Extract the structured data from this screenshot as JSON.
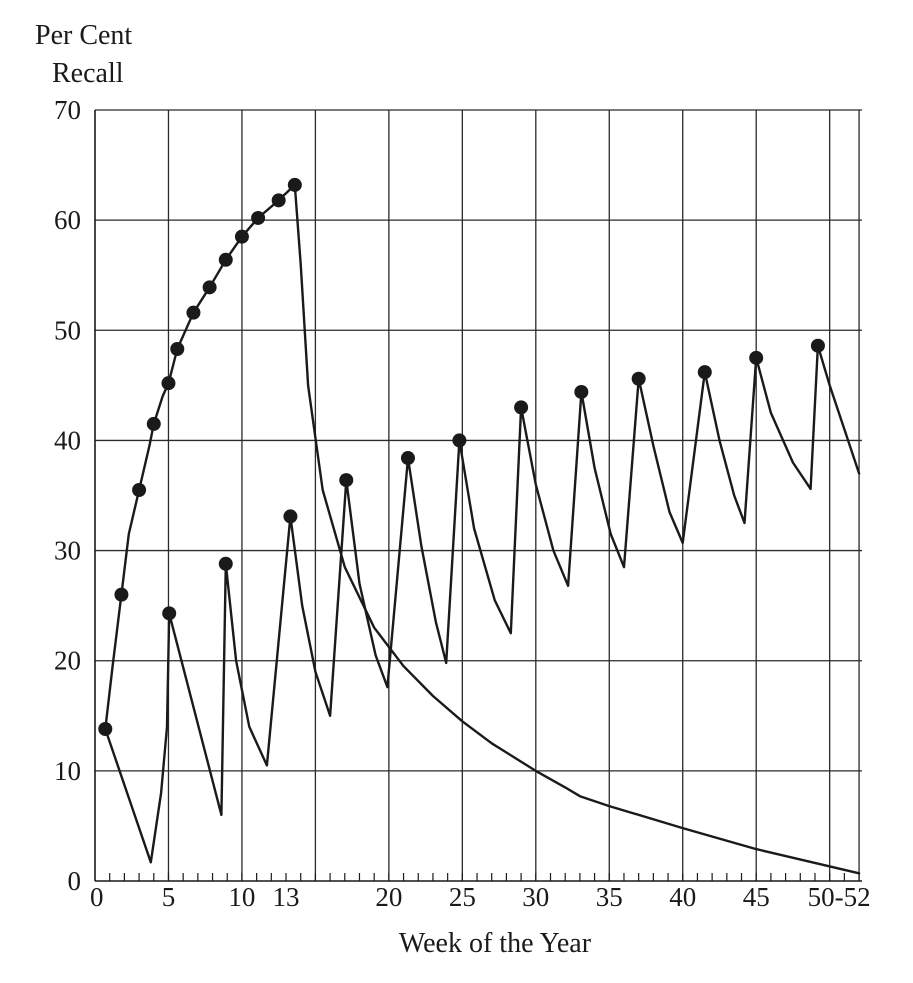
{
  "chart_data": {
    "type": "line",
    "title": "",
    "ylabel_lines": [
      "Per Cent",
      "Recall"
    ],
    "xlabel": "Week of the Year",
    "ylim": [
      0,
      70
    ],
    "yticks": [
      0,
      10,
      20,
      30,
      40,
      50,
      60,
      70
    ],
    "xtick_labels": [
      {
        "x": 0,
        "label": "0"
      },
      {
        "x": 5,
        "label": "5"
      },
      {
        "x": 10,
        "label": "10"
      },
      {
        "x": 13,
        "label": "13"
      },
      {
        "x": 20,
        "label": "20"
      },
      {
        "x": 25,
        "label": "25"
      },
      {
        "x": 30,
        "label": "30"
      },
      {
        "x": 35,
        "label": "35"
      },
      {
        "x": 40,
        "label": "40"
      },
      {
        "x": 45,
        "label": "45"
      },
      {
        "x": 50,
        "label": "50-52"
      }
    ],
    "vertical_gridlines": [
      5,
      10,
      15,
      20,
      25,
      30,
      35,
      40,
      45,
      50,
      52
    ],
    "grid": true,
    "series": [
      {
        "curve": [
          [
            0.7,
            13.8
          ],
          [
            1.2,
            19.5
          ],
          [
            1.8,
            26.0
          ],
          [
            2.3,
            31.5
          ],
          [
            3.0,
            35.5
          ],
          [
            3.7,
            39.5
          ],
          [
            4.0,
            41.5
          ],
          [
            4.6,
            44.0
          ],
          [
            5.0,
            45.2
          ],
          [
            5.6,
            48.3
          ],
          [
            6.7,
            51.6
          ],
          [
            7.8,
            53.9
          ],
          [
            8.9,
            56.4
          ],
          [
            10.0,
            58.5
          ],
          [
            11.1,
            60.2
          ],
          [
            12.5,
            61.8
          ],
          [
            13.6,
            63.2
          ],
          [
            14.0,
            56.0
          ],
          [
            14.5,
            45.0
          ],
          [
            15.5,
            35.5
          ],
          [
            17.0,
            28.5
          ],
          [
            19.0,
            23.0
          ],
          [
            21.0,
            19.5
          ],
          [
            23.0,
            16.8
          ],
          [
            25.0,
            14.5
          ],
          [
            27.0,
            12.5
          ],
          [
            30.0,
            10.0
          ],
          [
            32.0,
            8.5
          ],
          [
            33.0,
            7.7
          ],
          [
            35.0,
            6.8
          ],
          [
            40.0,
            4.8
          ],
          [
            45.0,
            2.9
          ],
          [
            52.0,
            0.7
          ]
        ],
        "markers": [
          [
            0.7,
            13.8
          ],
          [
            1.8,
            26.0
          ],
          [
            3.0,
            35.5
          ],
          [
            4.0,
            41.5
          ],
          [
            5.0,
            45.2
          ],
          [
            5.6,
            48.3
          ],
          [
            6.7,
            51.6
          ],
          [
            7.8,
            53.9
          ],
          [
            8.9,
            56.4
          ],
          [
            10.0,
            58.5
          ],
          [
            11.1,
            60.2
          ],
          [
            12.5,
            61.8
          ],
          [
            13.6,
            63.2
          ]
        ]
      },
      {
        "curve": [
          [
            0.7,
            13.8
          ],
          [
            3.8,
            1.7
          ],
          [
            4.5,
            8.0
          ],
          [
            4.9,
            14.0
          ],
          [
            5.05,
            24.3
          ],
          [
            8.6,
            6.0
          ],
          [
            8.9,
            28.8
          ],
          [
            9.6,
            20.0
          ],
          [
            10.5,
            14.0
          ],
          [
            11.7,
            10.5
          ],
          [
            13.3,
            33.1
          ],
          [
            14.1,
            25.0
          ],
          [
            15.0,
            19.0
          ],
          [
            16.0,
            15.0
          ],
          [
            17.1,
            36.4
          ],
          [
            18.0,
            27.0
          ],
          [
            19.1,
            20.5
          ],
          [
            19.9,
            17.6
          ],
          [
            21.3,
            38.4
          ],
          [
            22.2,
            30.5
          ],
          [
            23.2,
            23.5
          ],
          [
            23.9,
            19.8
          ],
          [
            24.8,
            40.0
          ],
          [
            25.8,
            32.0
          ],
          [
            27.2,
            25.5
          ],
          [
            28.3,
            22.5
          ],
          [
            29.0,
            43.0
          ],
          [
            30.0,
            36.0
          ],
          [
            31.2,
            30.0
          ],
          [
            32.2,
            26.8
          ],
          [
            33.1,
            44.4
          ],
          [
            34.0,
            37.5
          ],
          [
            35.1,
            31.5
          ],
          [
            36.0,
            28.5
          ],
          [
            37.0,
            45.6
          ],
          [
            38.0,
            39.5
          ],
          [
            39.1,
            33.5
          ],
          [
            40.0,
            30.7
          ],
          [
            41.5,
            46.2
          ],
          [
            42.5,
            40.0
          ],
          [
            43.5,
            35.0
          ],
          [
            44.2,
            32.5
          ],
          [
            45.0,
            47.5
          ],
          [
            46.0,
            42.5
          ],
          [
            47.5,
            38.0
          ],
          [
            48.7,
            35.6
          ],
          [
            49.2,
            48.6
          ],
          [
            50.0,
            45.0
          ],
          [
            51.0,
            41.0
          ],
          [
            52.0,
            37.0
          ]
        ],
        "markers": [
          [
            5.05,
            24.3
          ],
          [
            8.9,
            28.8
          ],
          [
            13.3,
            33.1
          ],
          [
            17.1,
            36.4
          ],
          [
            21.3,
            38.4
          ],
          [
            24.8,
            40.0
          ],
          [
            29.0,
            43.0
          ],
          [
            33.1,
            44.4
          ],
          [
            37.0,
            45.6
          ],
          [
            41.5,
            46.2
          ],
          [
            45.0,
            47.5
          ],
          [
            49.2,
            48.6
          ]
        ]
      }
    ]
  }
}
